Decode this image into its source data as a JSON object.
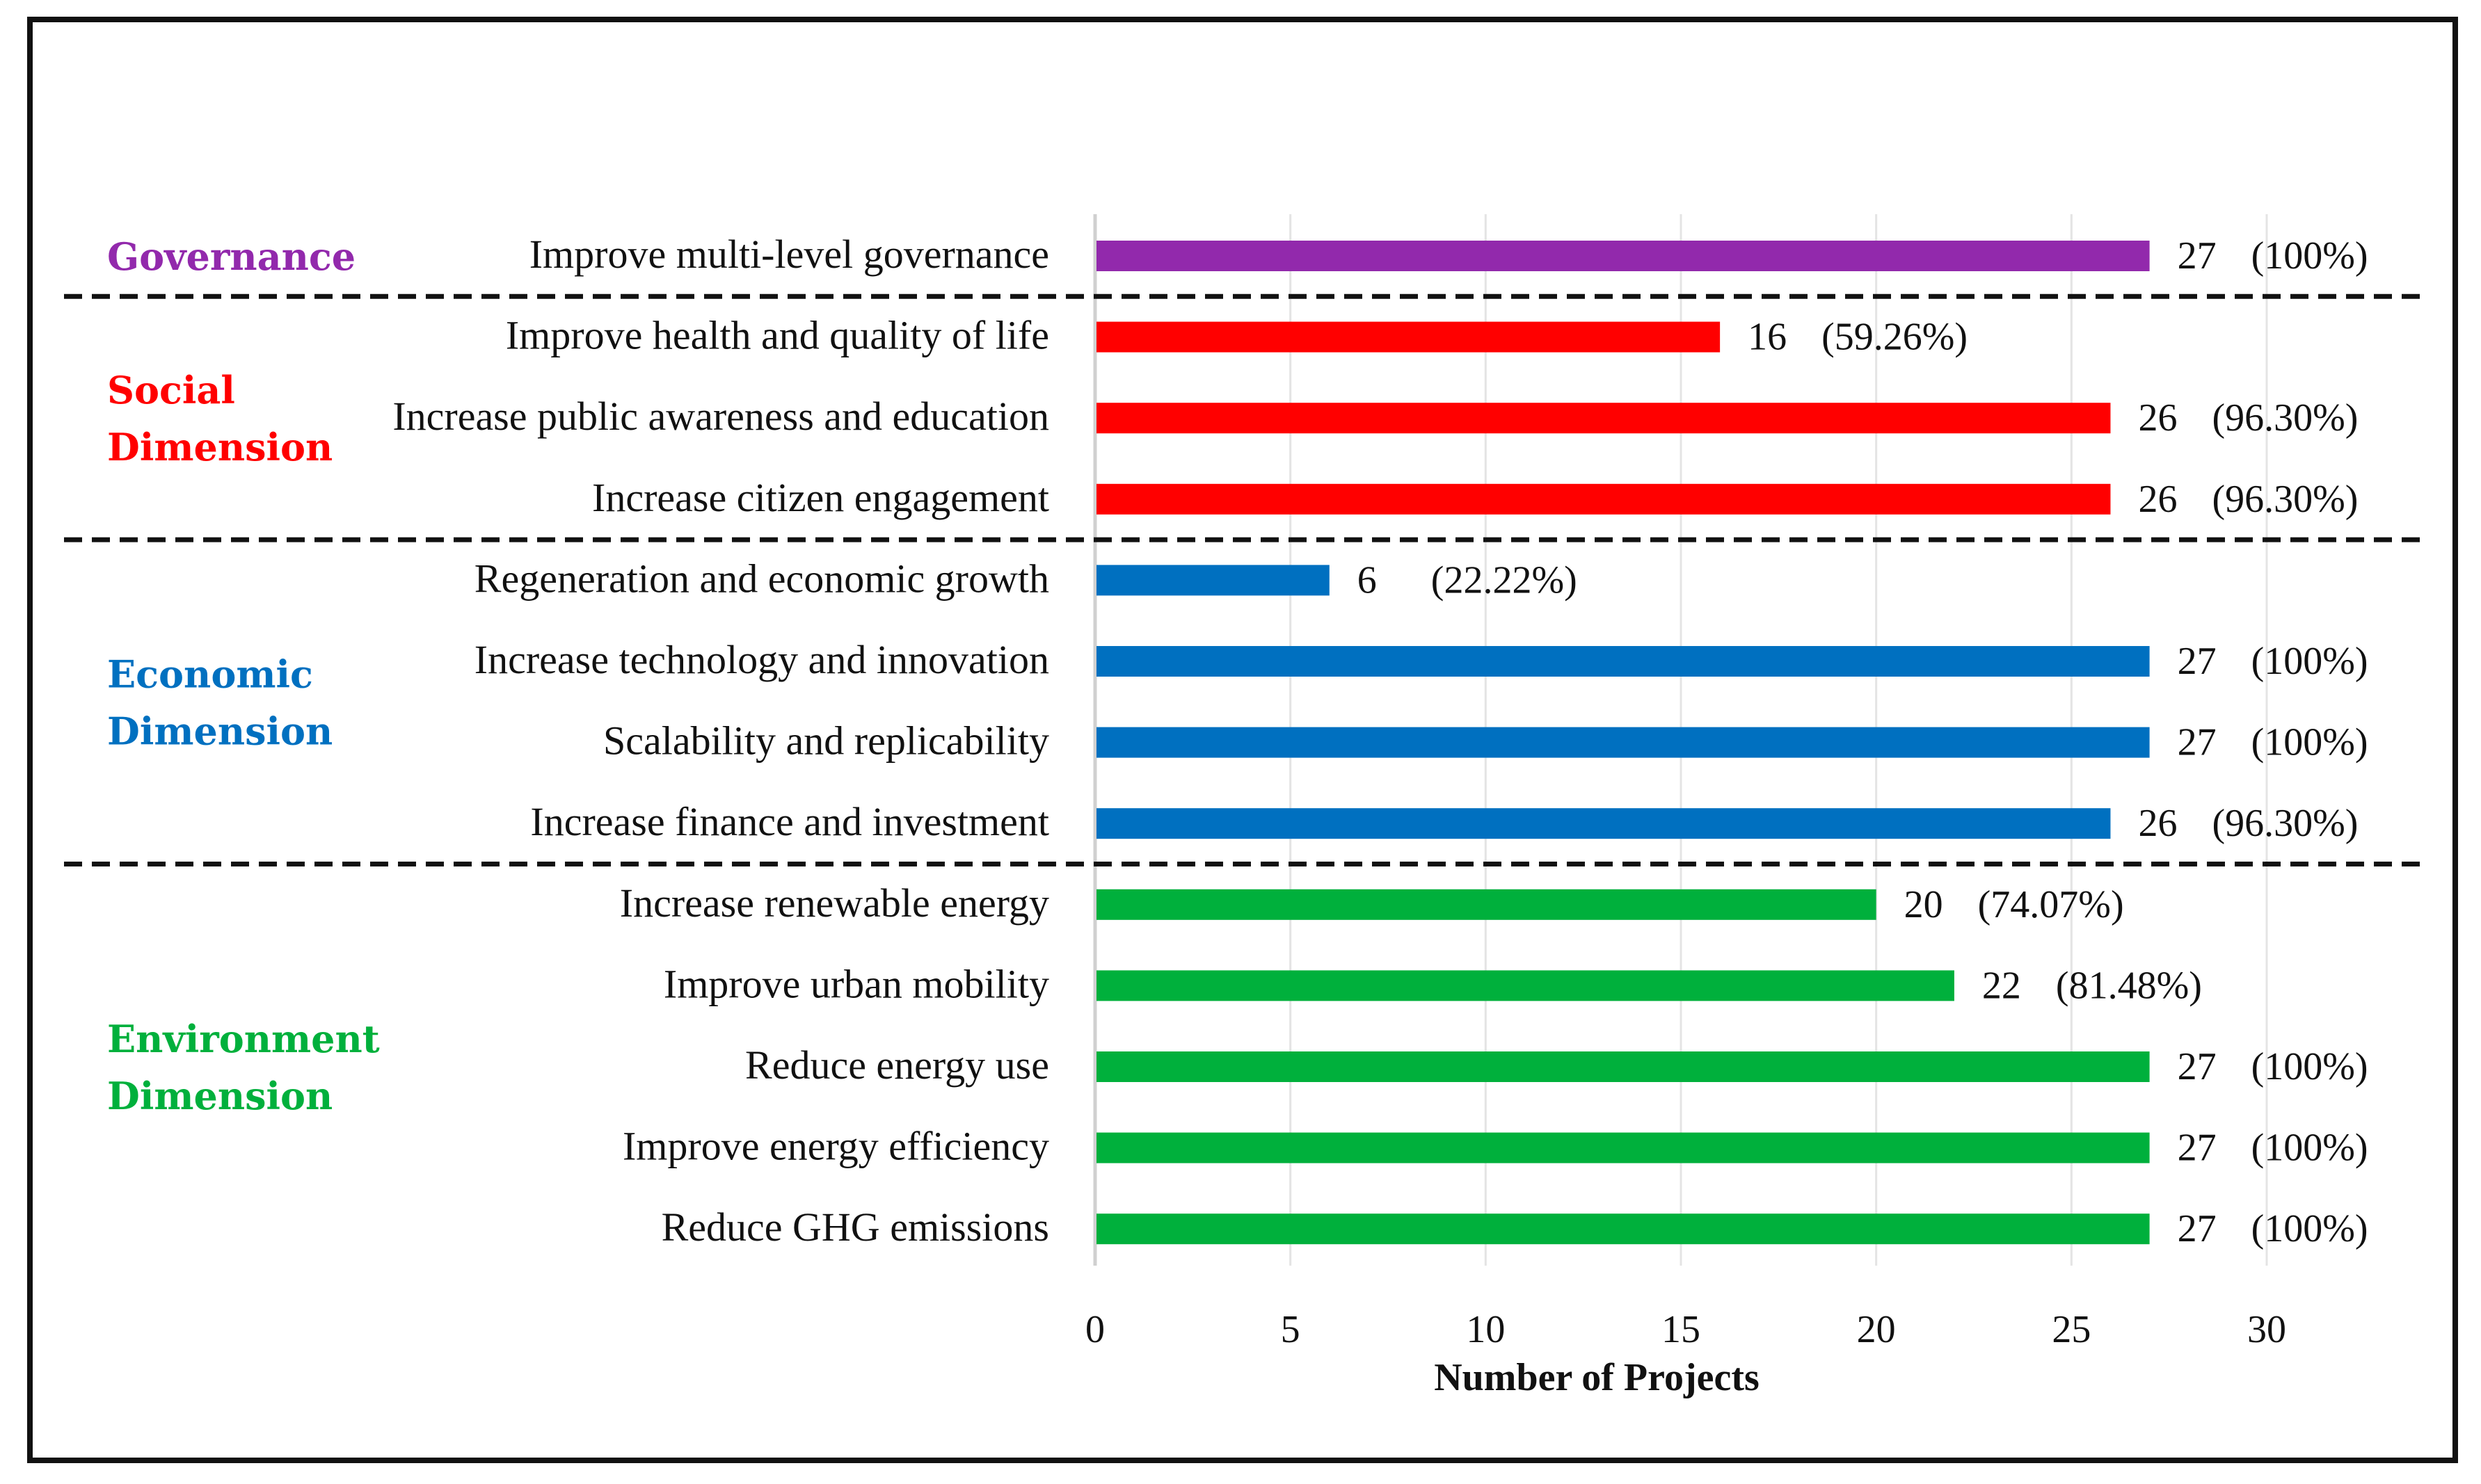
{
  "chart_data": {
    "type": "bar",
    "orientation": "horizontal",
    "xlabel": "Number of Projects",
    "xlim": [
      0,
      30
    ],
    "xticks": [
      0,
      5,
      10,
      15,
      20,
      25,
      30
    ],
    "grid": true,
    "groups": [
      {
        "name": "Governance",
        "color": "#9229ac",
        "items": [
          {
            "label": "Improve multi-level governance",
            "value": 27,
            "percent": "(100%)"
          }
        ]
      },
      {
        "name": "Social Dimension",
        "name_lines": [
          "Social",
          "Dimension"
        ],
        "color": "#ff0000",
        "items": [
          {
            "label": "Improve health and quality of life",
            "value": 16,
            "percent": "(59.26%)"
          },
          {
            "label": "Increase public awareness and education",
            "value": 26,
            "percent": "(96.30%)"
          },
          {
            "label": "Increase citizen engagement",
            "value": 26,
            "percent": "(96.30%)"
          }
        ]
      },
      {
        "name": "Economic Dimension",
        "name_lines": [
          "Economic",
          "Dimension"
        ],
        "color": "#0070c0",
        "items": [
          {
            "label": "Regeneration and economic growth",
            "value": 6,
            "percent": "(22.22%)"
          },
          {
            "label": "Increase technology and innovation",
            "value": 27,
            "percent": "(100%)"
          },
          {
            "label": "Scalability and replicability",
            "value": 27,
            "percent": "(100%)"
          },
          {
            "label": "Increase finance and investment",
            "value": 26,
            "percent": "(96.30%)"
          }
        ]
      },
      {
        "name": "Environment Dimension",
        "name_lines": [
          "Environment",
          "Dimension"
        ],
        "color": "#00b03c",
        "items": [
          {
            "label": "Increase renewable energy",
            "value": 20,
            "percent": "(74.07%)"
          },
          {
            "label": "Improve urban mobility",
            "value": 22,
            "percent": "(81.48%)"
          },
          {
            "label": "Reduce energy use",
            "value": 27,
            "percent": "(100%)"
          },
          {
            "label": "Improve energy efficiency",
            "value": 27,
            "percent": "(100%)"
          },
          {
            "label": "Reduce GHG emissions",
            "value": 27,
            "percent": "(100%)"
          }
        ]
      }
    ]
  }
}
